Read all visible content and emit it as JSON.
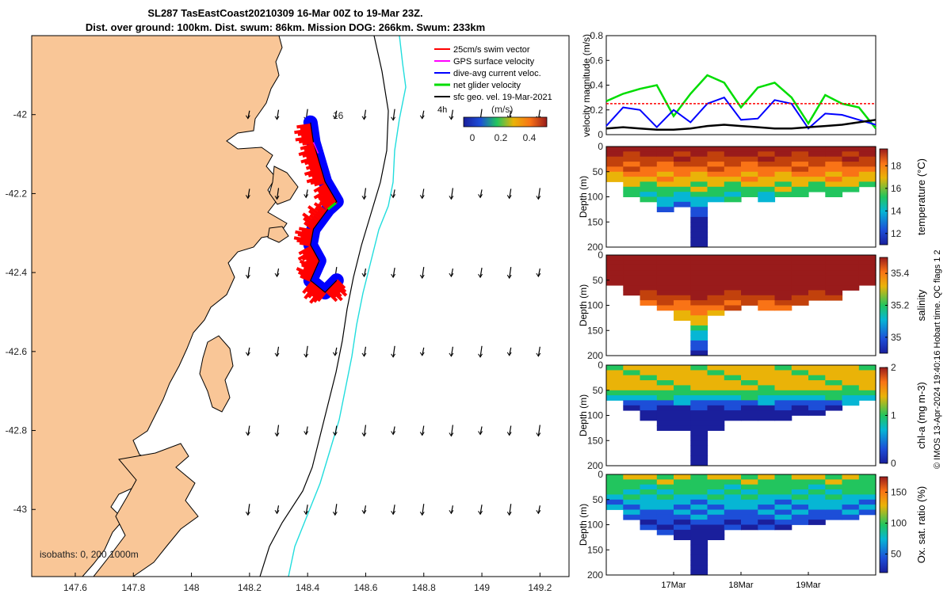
{
  "title": {
    "line1": "SL287 TasEastCoast20210309 16-Mar 00Z to 19-Mar 23Z.",
    "line2": "Dist. over ground: 100km. Dist. swum: 86km. Mission DOG: 266km. Swum: 233km"
  },
  "colors": {
    "land": "#f9c697",
    "sea": "#ffffff",
    "swim": "#ff0000",
    "gps": "#ff00ff",
    "dive_avg": "#0000ff",
    "net": "#00dd00",
    "geo": "#000000",
    "isobath_1000": "#22dddd"
  },
  "chart_data": [
    {
      "type": "map",
      "name": "glider track map",
      "xlim": [
        147.45,
        149.3
      ],
      "ylim": [
        -43.17,
        -41.8
      ],
      "x_ticks": [
        "147.6",
        "147.8",
        "148",
        "148.2",
        "148.4",
        "148.6",
        "148.8",
        "149",
        "149.2"
      ],
      "y_ticks": [
        "-42",
        "-42.2",
        "-42.4",
        "-42.6",
        "-42.8",
        "-43"
      ],
      "legend": [
        "25cm/s swim vector",
        "GPS surface velocity",
        "dive-avg current veloc.",
        "net glider velocity",
        "sfc geo. vel. 19-Mar-2021"
      ],
      "time_marker": "4h",
      "track_label": "16",
      "speed_colorbar": {
        "label": "(m/s)",
        "ticks": [
          "0",
          "0.2",
          "0.4"
        ],
        "range": [
          0,
          0.5
        ]
      },
      "isobaths_label": "isobaths: 0, 200  1000m",
      "track": [
        [
          148.5,
          -42.42
        ],
        [
          148.46,
          -42.45
        ],
        [
          148.41,
          -42.42
        ],
        [
          148.44,
          -42.37
        ],
        [
          148.41,
          -42.33
        ],
        [
          148.42,
          -42.29
        ],
        [
          148.47,
          -42.24
        ],
        [
          148.5,
          -42.22
        ],
        [
          148.46,
          -42.17
        ],
        [
          148.44,
          -42.12
        ],
        [
          148.42,
          -42.07
        ],
        [
          148.41,
          -42.02
        ]
      ]
    },
    {
      "type": "line",
      "name": "velocity magnitude",
      "ylabel": "velocity magnitude (m/s)",
      "ylim": [
        0,
        0.8
      ],
      "yticks": [
        "0",
        "0.2",
        "0.4",
        "0.6",
        "0.8"
      ],
      "x": [
        0,
        0.25,
        0.5,
        0.75,
        1,
        1.25,
        1.5,
        1.75,
        2,
        2.25,
        2.5,
        2.75,
        3,
        3.25,
        3.5,
        3.75,
        4
      ],
      "series": [
        {
          "name": "net glider velocity",
          "values": [
            0.27,
            0.33,
            0.37,
            0.4,
            0.15,
            0.33,
            0.48,
            0.42,
            0.22,
            0.38,
            0.42,
            0.3,
            0.09,
            0.32,
            0.25,
            0.22,
            0.05
          ]
        },
        {
          "name": "dive-avg current veloc.",
          "values": [
            0.07,
            0.22,
            0.2,
            0.06,
            0.2,
            0.1,
            0.25,
            0.3,
            0.12,
            0.13,
            0.28,
            0.25,
            0.05,
            0.17,
            0.16,
            0.12,
            0.08
          ]
        },
        {
          "name": "25cm/s swim vector",
          "values": [
            0.25,
            0.25,
            0.25,
            0.25,
            0.25,
            0.25,
            0.25,
            0.25,
            0.25,
            0.25,
            0.25,
            0.25,
            0.25,
            0.25,
            0.25,
            0.25,
            0.25
          ]
        },
        {
          "name": "sfc geo. vel.",
          "values": [
            0.05,
            0.06,
            0.05,
            0.04,
            0.04,
            0.05,
            0.07,
            0.08,
            0.07,
            0.06,
            0.05,
            0.05,
            0.06,
            0.07,
            0.08,
            0.1,
            0.12
          ]
        }
      ]
    },
    {
      "type": "heatmap",
      "name": "temperature section",
      "ylabel": "Depth (m)",
      "colorbar_label": "temperature (°C)",
      "ylim": [
        200,
        0
      ],
      "yticks": [
        "0",
        "50",
        "100",
        "150",
        "200"
      ],
      "cticks": [
        "12",
        "14",
        "16",
        "18"
      ],
      "crange": [
        11,
        19.5
      ],
      "depth_profile_m": [
        60,
        90,
        110,
        120,
        115,
        200,
        110,
        100,
        95,
        100,
        95,
        90,
        85,
        90,
        80,
        75
      ]
    },
    {
      "type": "heatmap",
      "name": "salinity section",
      "ylabel": "Depth (m)",
      "colorbar_label": "salinity",
      "ylim": [
        200,
        0
      ],
      "yticks": [
        "0",
        "50",
        "100",
        "150",
        "200"
      ],
      "cticks": [
        "35",
        "35.2",
        "35.4"
      ],
      "crange": [
        34.9,
        35.5
      ],
      "depth_profile_m": [
        50,
        70,
        90,
        110,
        120,
        200,
        115,
        100,
        95,
        105,
        100,
        90,
        85,
        80,
        60,
        50
      ]
    },
    {
      "type": "heatmap",
      "name": "chlorophyll-a section",
      "ylabel": "Depth (m)",
      "colorbar_label": "chl-a (mg m-3)",
      "ylim": [
        200,
        0
      ],
      "yticks": [
        "0",
        "50",
        "100",
        "150",
        "200"
      ],
      "cticks": [
        "0",
        "1",
        "2"
      ],
      "crange": [
        0,
        2
      ],
      "depth_profile_m": [
        60,
        80,
        100,
        120,
        125,
        200,
        125,
        110,
        100,
        105,
        100,
        95,
        90,
        85,
        75,
        60
      ]
    },
    {
      "type": "heatmap",
      "name": "oxygen saturation section",
      "ylabel": "Depth (m)",
      "colorbar_label": "Ox. sat. ratio (%)",
      "ylim": [
        200,
        0
      ],
      "yticks": [
        "0",
        "50",
        "100",
        "150",
        "200"
      ],
      "cticks": [
        "50",
        "100",
        "150"
      ],
      "crange": [
        20,
        175
      ],
      "depth_profile_m": [
        60,
        85,
        100,
        115,
        125,
        200,
        120,
        110,
        100,
        105,
        100,
        95,
        90,
        85,
        80,
        70
      ]
    }
  ],
  "time_axis": {
    "ticks": [
      "17Mar",
      "18Mar",
      "19Mar"
    ]
  },
  "footer": "© IMOS 13-Apr-2024 19:40:16 Hobart time. QC flags 1  2"
}
